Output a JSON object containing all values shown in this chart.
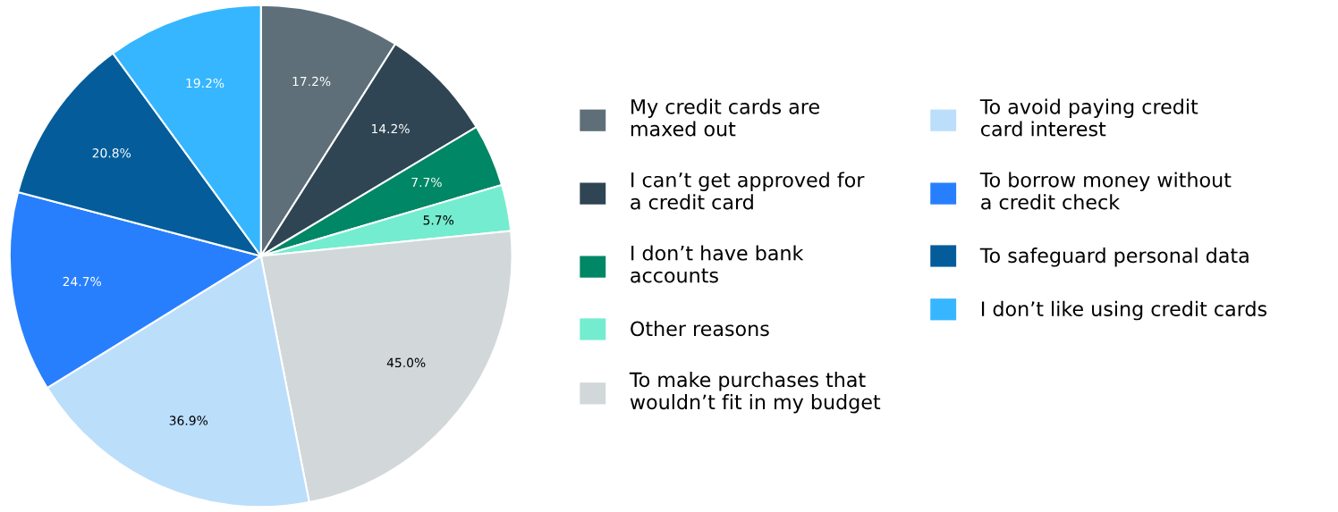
{
  "chart_data": {
    "type": "pie",
    "categories": [
      "My credit cards are\nmaxed out",
      "I can’t get approved for\na credit card",
      "I don’t have bank\naccounts",
      "Other reasons",
      "To make purchases that\nwouldn’t fit in my budget",
      "To avoid paying credit\ncard interest",
      "To borrow money without\na credit check",
      "To safeguard personal data",
      "I don’t like using credit cards"
    ],
    "values": [
      17.2,
      14.2,
      7.7,
      5.7,
      45.0,
      36.9,
      24.7,
      20.8,
      19.2
    ],
    "colors": [
      "#5e6f79",
      "#2f4553",
      "#008765",
      "#74ecd0",
      "#d2d7da",
      "#bbdefb",
      "#277ffe",
      "#045d9a",
      "#36b6ff"
    ],
    "value_labels": [
      "17.2%",
      "14.2%",
      "7.7%",
      "5.7%",
      "45.0%",
      "36.9%",
      "24.7%",
      "20.8%",
      "19.2%"
    ],
    "legend": "right"
  }
}
